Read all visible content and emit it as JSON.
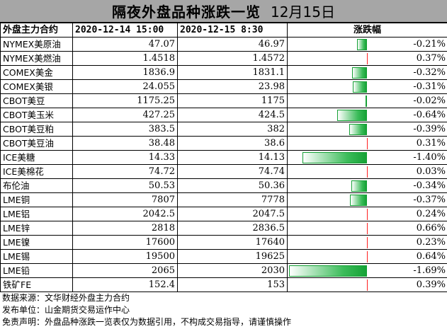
{
  "title": {
    "text": "隔夜外盘品种涨跌一览",
    "date": "12月15日"
  },
  "headers": {
    "name": "外盘主力合约",
    "prev": "2020-12-14 15:00",
    "curr": "2020-12-15 8:30",
    "change": "涨跌幅"
  },
  "rows": [
    {
      "name": "NYMEX美原油",
      "prev": "47.07",
      "curr": "46.97",
      "pct": "-0.21%",
      "value": -0.21
    },
    {
      "name": "NYMEX美燃油",
      "prev": "1.4518",
      "curr": "1.4572",
      "pct": "0.37%",
      "value": 0.37
    },
    {
      "name": "COMEX美金",
      "prev": "1836.9",
      "curr": "1831.1",
      "pct": "-0.32%",
      "value": -0.32
    },
    {
      "name": "COMEX美银",
      "prev": "24.055",
      "curr": "23.98",
      "pct": "-0.31%",
      "value": -0.31
    },
    {
      "name": "CBOT美豆",
      "prev": "1175.25",
      "curr": "1175",
      "pct": "-0.02%",
      "value": -0.02
    },
    {
      "name": "CBOT美玉米",
      "prev": "427.25",
      "curr": "424.5",
      "pct": "-0.64%",
      "value": -0.64
    },
    {
      "name": "CBOT美豆粕",
      "prev": "383.5",
      "curr": "382",
      "pct": "-0.39%",
      "value": -0.39
    },
    {
      "name": "CBOT美豆油",
      "prev": "38.48",
      "curr": "38.6",
      "pct": "0.31%",
      "value": 0.31
    },
    {
      "name": "ICE美糖",
      "prev": "14.33",
      "curr": "14.13",
      "pct": "-1.40%",
      "value": -1.4
    },
    {
      "name": "ICE美棉花",
      "prev": "74.72",
      "curr": "74.74",
      "pct": "0.03%",
      "value": 0.03
    },
    {
      "name": "布伦油",
      "prev": "50.53",
      "curr": "50.36",
      "pct": "-0.34%",
      "value": -0.34
    },
    {
      "name": "LME铜",
      "prev": "7807",
      "curr": "7778",
      "pct": "-0.37%",
      "value": -0.37
    },
    {
      "name": "LME铝",
      "prev": "2042.5",
      "curr": "2047.5",
      "pct": "0.24%",
      "value": 0.24
    },
    {
      "name": "LME锌",
      "prev": "2818",
      "curr": "2836.5",
      "pct": "0.66%",
      "value": 0.66
    },
    {
      "name": "LME镍",
      "prev": "17600",
      "curr": "17640",
      "pct": "0.23%",
      "value": 0.23
    },
    {
      "name": "LME锡",
      "prev": "19500",
      "curr": "19625",
      "pct": "0.64%",
      "value": 0.64
    },
    {
      "name": "LME铅",
      "prev": "2065",
      "curr": "2030",
      "pct": "-1.69%",
      "value": -1.69
    },
    {
      "name": "铁矿FE",
      "prev": "152.4",
      "curr": "153",
      "pct": "0.39%",
      "value": 0.39
    }
  ],
  "footer": {
    "source": "数据来源：文华财经外盘主力合约",
    "publisher": "发布单位：山金期货交易运作中心",
    "disclaimer": "免责声明：外盘品种涨跌一览表仅为数据引用，不构成交易指导，请谨慎操作"
  },
  "colors": {
    "up": "#ff2020",
    "down": "#16a236",
    "title_bg": "#a6a6a6"
  }
}
